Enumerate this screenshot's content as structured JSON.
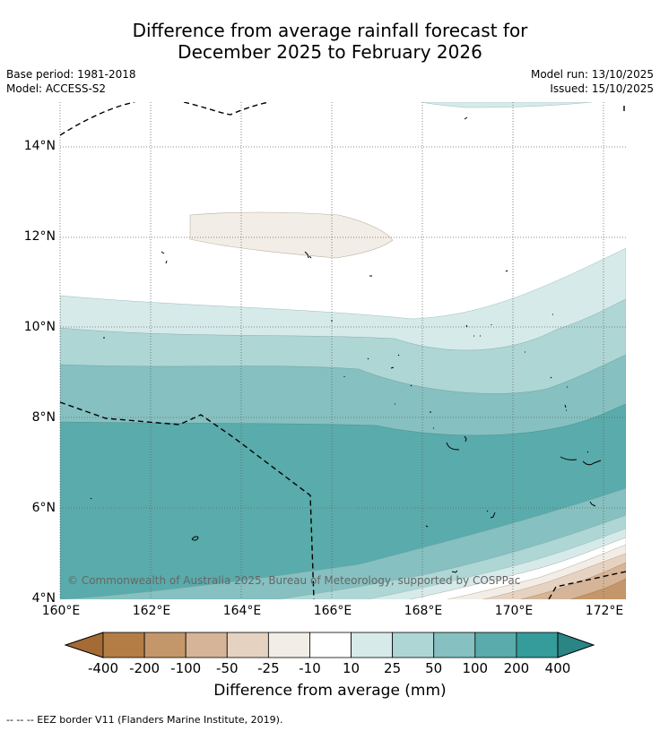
{
  "title": {
    "line1": "Difference from average rainfall forecast for",
    "line2": "December 2025 to February 2026"
  },
  "meta": {
    "base_period": "Base period: 1981-2018",
    "model": "Model: ACCESS-S2",
    "model_run": "Model run: 13/10/2025",
    "issued": "Issued: 15/10/2025"
  },
  "map": {
    "lat_ticks": [
      "14°N",
      "12°N",
      "10°N",
      "8°N",
      "6°N",
      "4°N"
    ],
    "lon_ticks": [
      "160°E",
      "162°E",
      "164°E",
      "166°E",
      "168°E",
      "170°E",
      "172°E"
    ],
    "copyright": "© Commonwealth of Australia 2025, Bureau of Meteorology, supported by COSPPac"
  },
  "colorbar": {
    "labels": [
      "-400",
      "-200",
      "-100",
      "-50",
      "-25",
      "-10",
      "10",
      "25",
      "50",
      "100",
      "200",
      "400"
    ],
    "colors": [
      "#a56b35",
      "#b47d46",
      "#c4976a",
      "#d6b497",
      "#e5d2c1",
      "#f2ede6",
      "#ffffff",
      "#d6eae9",
      "#aed6d5",
      "#86c0c0",
      "#5aabab",
      "#359b9b",
      "#2a8585"
    ],
    "title": "Difference from average (mm)"
  },
  "legend_note": "--  --  -- EEZ border V11 (Flanders Marine Institute, 2019)."
}
